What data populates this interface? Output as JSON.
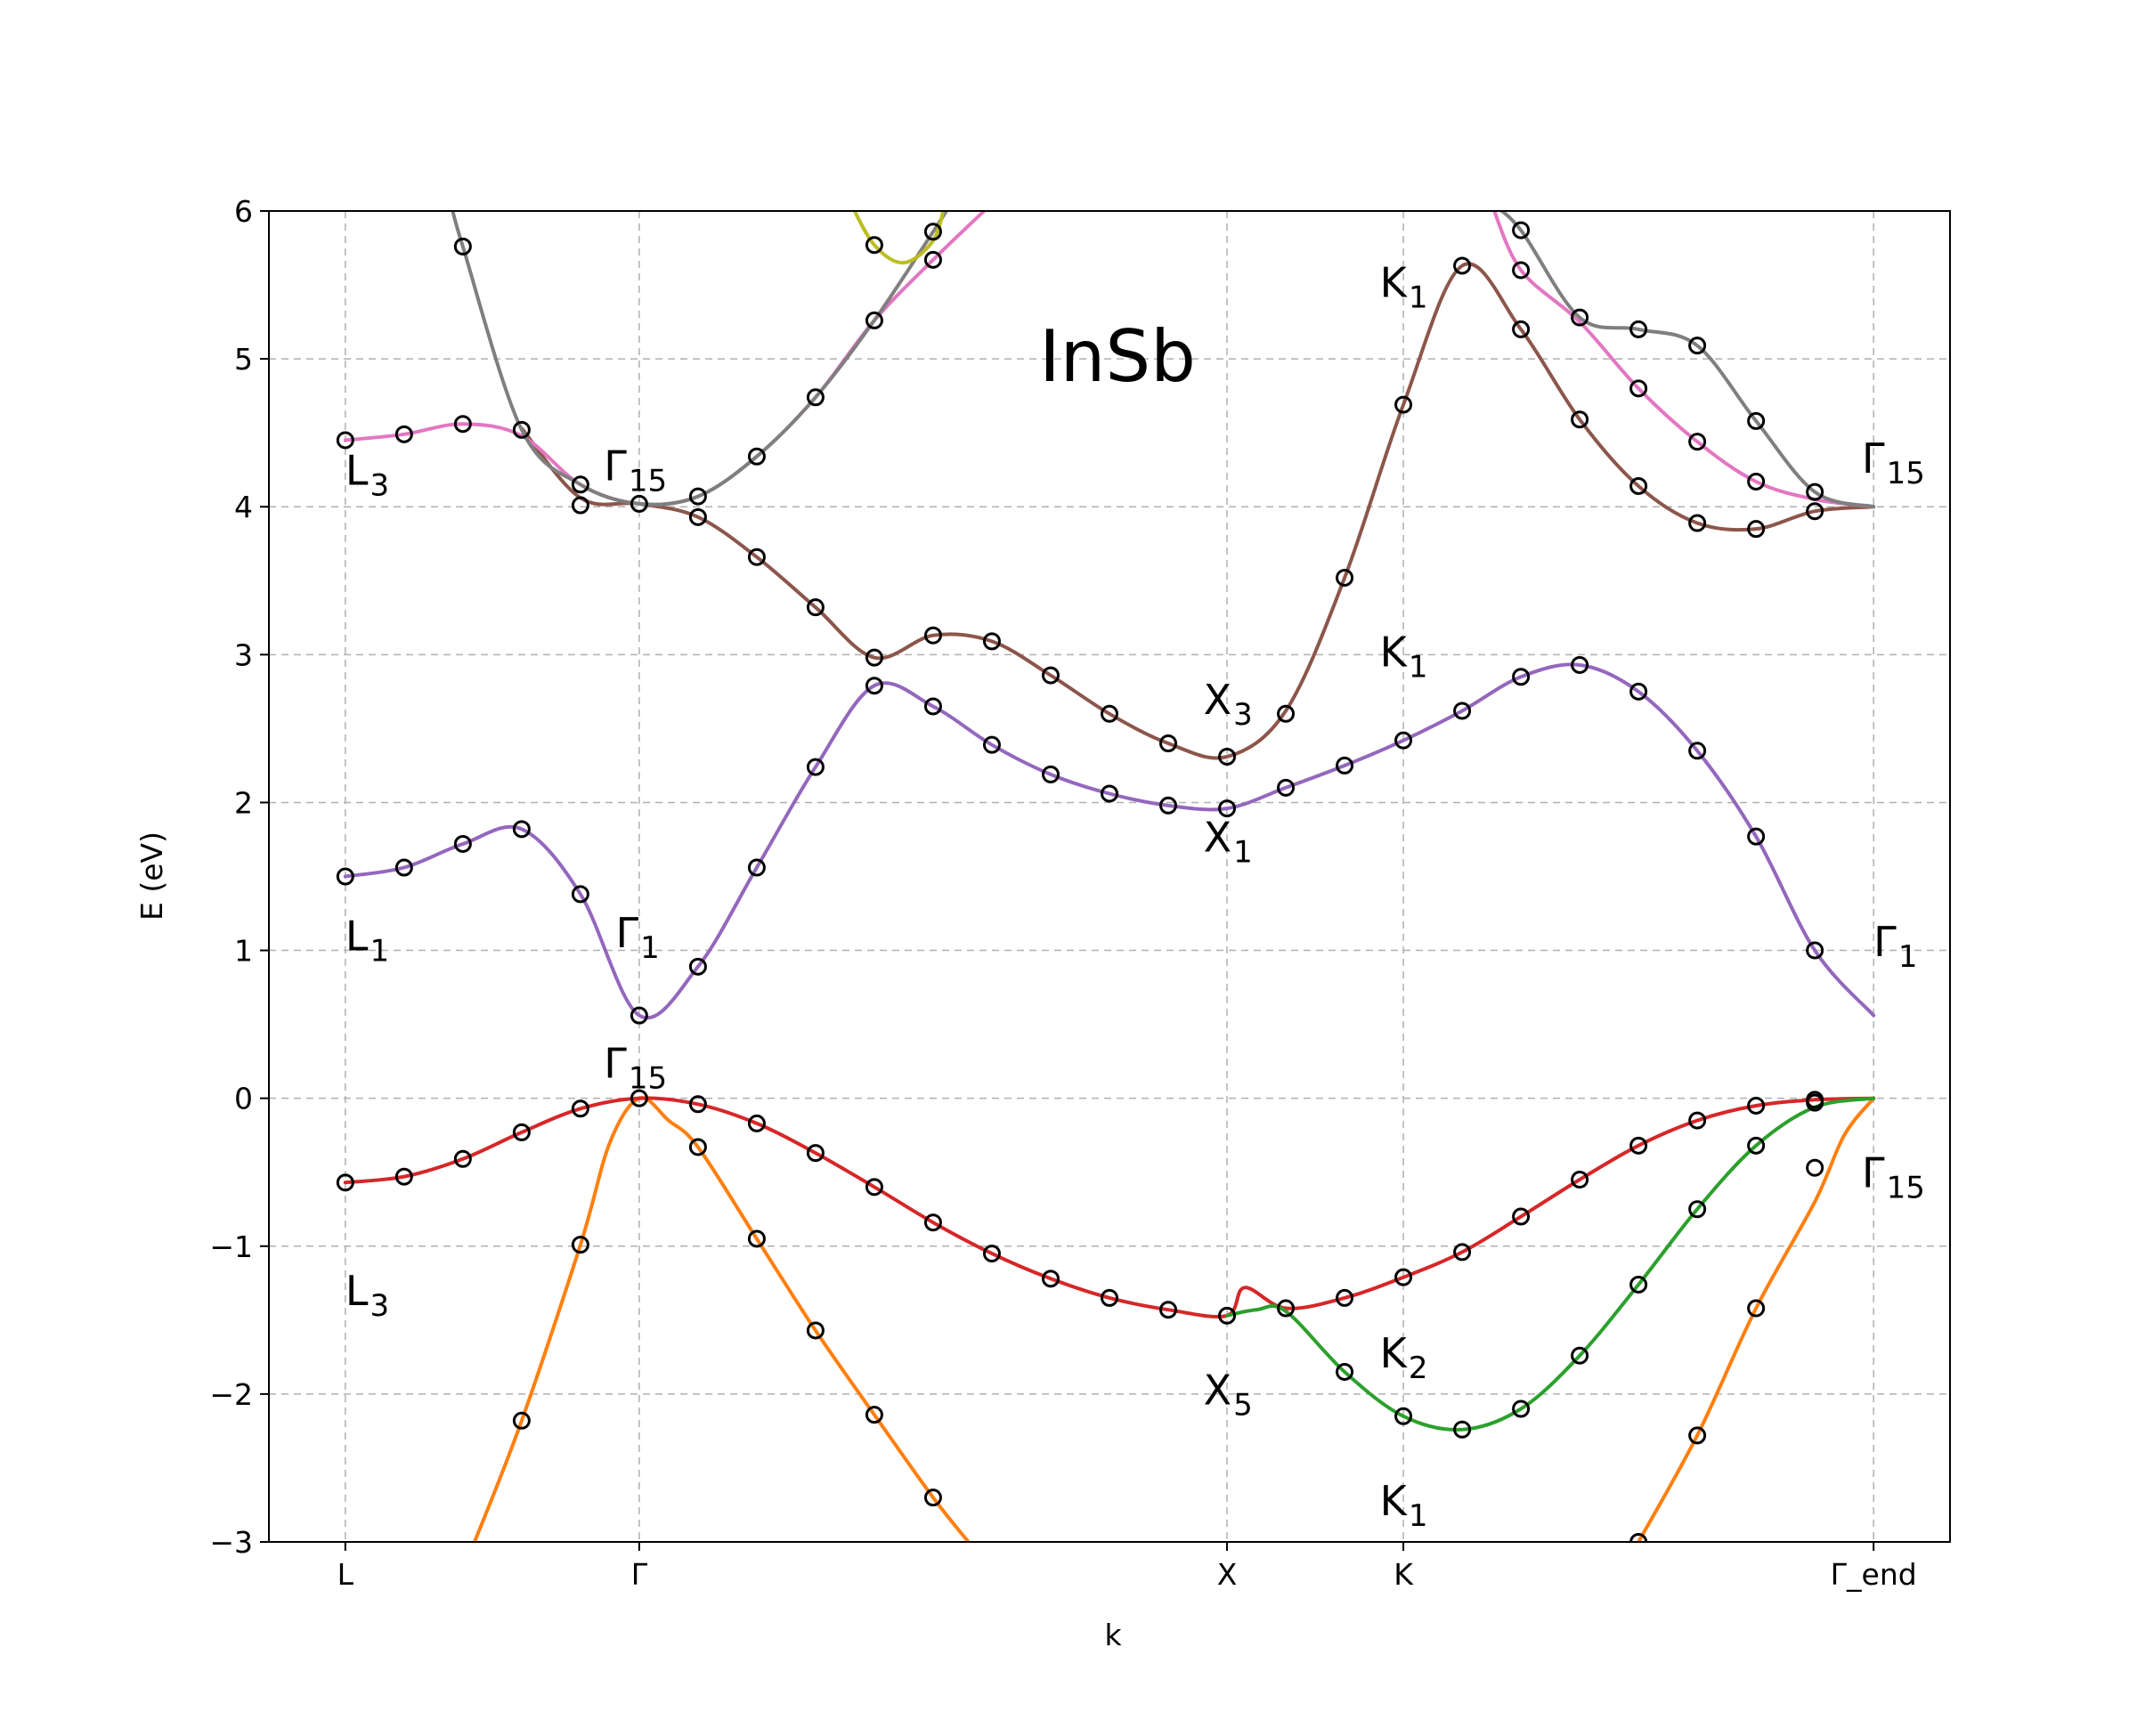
{
  "chart_data": {
    "type": "line",
    "title": "InSb",
    "xlabel": "k",
    "ylabel": "E (eV)",
    "ylim": [
      -3,
      6
    ],
    "yticks": [
      -3,
      -2,
      -1,
      0,
      1,
      2,
      3,
      4,
      5,
      6
    ],
    "ytick_labels": [
      "−3",
      "−2",
      "−1",
      "0",
      "1",
      "2",
      "3",
      "4",
      "5",
      "6"
    ],
    "xlim": [
      -0.13,
      2.73
    ],
    "kpoints": [
      {
        "label": "L",
        "x": 0
      },
      {
        "label": "Γ",
        "x": 0.5
      },
      {
        "label": "X",
        "x": 1.5
      },
      {
        "label": "K",
        "x": 1.8
      },
      {
        "label": "Γ_end",
        "x": 2.6
      }
    ],
    "grid": true,
    "annotations": [
      {
        "base": "L",
        "sub": "3",
        "x": 0.0,
        "y": 4.15
      },
      {
        "base": "Γ",
        "sub": "15",
        "x": 0.44,
        "y": 4.18
      },
      {
        "base": "L",
        "sub": "1",
        "x": 0.0,
        "y": 1.0
      },
      {
        "base": "Γ",
        "sub": "1",
        "x": 0.46,
        "y": 1.02
      },
      {
        "base": "Γ",
        "sub": "15",
        "x": 0.44,
        "y": 0.14
      },
      {
        "base": "L",
        "sub": "3",
        "x": 0.0,
        "y": -1.4
      },
      {
        "base": "X",
        "sub": "3",
        "x": 1.46,
        "y": 2.6
      },
      {
        "base": "X",
        "sub": "1",
        "x": 1.46,
        "y": 1.67
      },
      {
        "base": "X",
        "sub": "5",
        "x": 1.46,
        "y": -2.07
      },
      {
        "base": "K",
        "sub": "1",
        "x": 1.76,
        "y": 5.42
      },
      {
        "base": "K",
        "sub": "1",
        "x": 1.76,
        "y": 2.92
      },
      {
        "base": "K",
        "sub": "2",
        "x": 1.76,
        "y": -1.82
      },
      {
        "base": "K",
        "sub": "1",
        "x": 1.76,
        "y": -2.82
      },
      {
        "base": "Γ",
        "sub": "15",
        "x": 2.58,
        "y": 4.23
      },
      {
        "base": "Γ",
        "sub": "1",
        "x": 2.6,
        "y": 0.96
      },
      {
        "base": "Γ",
        "sub": "15",
        "x": 2.58,
        "y": -0.6
      }
    ],
    "series": [
      {
        "color": "#ff7f0e",
        "points": [
          [
            0.22,
            -3.0
          ],
          [
            0.3,
            -2.18
          ],
          [
            0.4,
            -0.99
          ],
          [
            0.45,
            -0.3
          ],
          [
            0.5,
            0.0
          ],
          [
            0.55,
            -0.15
          ],
          [
            0.6,
            -0.33
          ],
          [
            0.7,
            -0.95
          ],
          [
            0.8,
            -1.57
          ],
          [
            0.9,
            -2.14
          ],
          [
            1.0,
            -2.7
          ],
          [
            1.06,
            -3.0
          ]
        ]
      },
      {
        "color": "#ff7f0e",
        "points": [
          [
            2.2,
            -3.0
          ],
          [
            2.3,
            -2.28
          ],
          [
            2.4,
            -1.42
          ],
          [
            2.5,
            -0.7
          ],
          [
            2.55,
            -0.25
          ],
          [
            2.6,
            0.0
          ]
        ]
      },
      {
        "color": "#d62728",
        "points": [
          [
            0.0,
            -0.57
          ],
          [
            0.1,
            -0.53
          ],
          [
            0.2,
            -0.41
          ],
          [
            0.3,
            -0.23
          ],
          [
            0.4,
            -0.07
          ],
          [
            0.5,
            0.0
          ],
          [
            0.6,
            -0.04
          ],
          [
            0.7,
            -0.17
          ],
          [
            0.8,
            -0.37
          ],
          [
            0.9,
            -0.6
          ],
          [
            1.0,
            -0.84
          ],
          [
            1.1,
            -1.05
          ],
          [
            1.2,
            -1.22
          ],
          [
            1.3,
            -1.35
          ],
          [
            1.4,
            -1.43
          ],
          [
            1.5,
            -1.47
          ],
          [
            1.53,
            -1.28
          ],
          [
            1.6,
            -1.42
          ],
          [
            1.7,
            -1.35
          ],
          [
            1.8,
            -1.21
          ],
          [
            1.9,
            -1.04
          ],
          [
            2.0,
            -0.8
          ],
          [
            2.1,
            -0.55
          ],
          [
            2.2,
            -0.32
          ],
          [
            2.3,
            -0.15
          ],
          [
            2.4,
            -0.05
          ],
          [
            2.5,
            -0.01
          ],
          [
            2.6,
            0.0
          ]
        ]
      },
      {
        "color": "#2ca02c",
        "points": [
          [
            1.5,
            -1.47
          ],
          [
            1.55,
            -1.43
          ],
          [
            1.6,
            -1.44
          ],
          [
            1.7,
            -1.85
          ],
          [
            1.8,
            -2.15
          ],
          [
            1.9,
            -2.24
          ],
          [
            2.0,
            -2.1
          ],
          [
            2.1,
            -1.74
          ],
          [
            2.2,
            -1.26
          ],
          [
            2.3,
            -0.75
          ],
          [
            2.4,
            -0.32
          ],
          [
            2.5,
            -0.06
          ],
          [
            2.6,
            0.0
          ]
        ]
      },
      {
        "color": "#9467bd",
        "points": [
          [
            0.0,
            1.5
          ],
          [
            0.1,
            1.56
          ],
          [
            0.2,
            1.72
          ],
          [
            0.3,
            1.82
          ],
          [
            0.4,
            1.38
          ],
          [
            0.5,
            0.56
          ],
          [
            0.6,
            0.89
          ],
          [
            0.7,
            1.56
          ],
          [
            0.8,
            2.24
          ],
          [
            0.9,
            2.79
          ],
          [
            1.0,
            2.65
          ],
          [
            1.1,
            2.39
          ],
          [
            1.2,
            2.19
          ],
          [
            1.3,
            2.06
          ],
          [
            1.4,
            1.98
          ],
          [
            1.5,
            1.96
          ],
          [
            1.6,
            2.1
          ],
          [
            1.7,
            2.25
          ],
          [
            1.8,
            2.42
          ],
          [
            1.9,
            2.62
          ],
          [
            2.0,
            2.85
          ],
          [
            2.1,
            2.93
          ],
          [
            2.2,
            2.75
          ],
          [
            2.3,
            2.35
          ],
          [
            2.4,
            1.77
          ],
          [
            2.5,
            1.0
          ],
          [
            2.6,
            0.56
          ]
        ]
      },
      {
        "color": "#8c564b",
        "points": [
          [
            0.3,
            4.53
          ],
          [
            0.4,
            4.06
          ],
          [
            0.5,
            4.02
          ],
          [
            0.6,
            3.93
          ],
          [
            0.7,
            3.66
          ],
          [
            0.8,
            3.32
          ],
          [
            0.9,
            2.98
          ],
          [
            1.0,
            3.13
          ],
          [
            1.1,
            3.09
          ],
          [
            1.2,
            2.86
          ],
          [
            1.3,
            2.6
          ],
          [
            1.4,
            2.4
          ],
          [
            1.5,
            2.31
          ],
          [
            1.6,
            2.62
          ],
          [
            1.7,
            3.52
          ],
          [
            1.8,
            4.69
          ],
          [
            1.9,
            5.63
          ],
          [
            2.0,
            5.2
          ],
          [
            2.1,
            4.59
          ],
          [
            2.2,
            4.14
          ],
          [
            2.3,
            3.89
          ],
          [
            2.4,
            3.85
          ],
          [
            2.5,
            3.97
          ],
          [
            2.6,
            4.0
          ]
        ]
      },
      {
        "color": "#e377c2",
        "points": [
          [
            0.0,
            4.45
          ],
          [
            0.1,
            4.49
          ],
          [
            0.2,
            4.56
          ],
          [
            0.3,
            4.48
          ],
          [
            0.4,
            4.15
          ],
          [
            0.5,
            4.02
          ],
          [
            0.6,
            4.07
          ],
          [
            0.7,
            4.34
          ],
          [
            0.8,
            4.74
          ],
          [
            0.9,
            5.26
          ],
          [
            1.0,
            5.67
          ],
          [
            1.1,
            6.05
          ]
        ]
      },
      {
        "color": "#e377c2",
        "points": [
          [
            1.95,
            6.05
          ],
          [
            2.0,
            5.6
          ],
          [
            2.1,
            5.25
          ],
          [
            2.2,
            4.8
          ],
          [
            2.3,
            4.44
          ],
          [
            2.4,
            4.17
          ],
          [
            2.5,
            4.05
          ],
          [
            2.6,
            4.0
          ]
        ]
      },
      {
        "color": "#7f7f7f",
        "points": [
          [
            0.18,
            6.05
          ],
          [
            0.2,
            5.76
          ],
          [
            0.3,
            4.52
          ],
          [
            0.4,
            4.15
          ],
          [
            0.5,
            4.02
          ],
          [
            0.6,
            4.07
          ],
          [
            0.7,
            4.34
          ],
          [
            0.8,
            4.74
          ],
          [
            0.9,
            5.26
          ],
          [
            1.0,
            5.86
          ],
          [
            1.03,
            6.05
          ]
        ]
      },
      {
        "color": "#7f7f7f",
        "points": [
          [
            1.95,
            6.05
          ],
          [
            2.0,
            5.87
          ],
          [
            2.1,
            5.28
          ],
          [
            2.2,
            5.2
          ],
          [
            2.3,
            5.09
          ],
          [
            2.4,
            4.58
          ],
          [
            2.5,
            4.1
          ],
          [
            2.6,
            4.0
          ]
        ]
      },
      {
        "color": "#bcbd22",
        "points": [
          [
            0.86,
            6.05
          ],
          [
            0.9,
            5.77
          ],
          [
            0.95,
            5.65
          ],
          [
            1.0,
            5.8
          ],
          [
            1.02,
            6.05
          ]
        ]
      }
    ],
    "markers": [
      [
        0.0,
        -0.57
      ],
      [
        0.1,
        -0.53
      ],
      [
        0.2,
        -0.41
      ],
      [
        0.3,
        -0.23
      ],
      [
        0.4,
        -0.07
      ],
      [
        0.5,
        0.0
      ],
      [
        0.6,
        -0.04
      ],
      [
        0.7,
        -0.17
      ],
      [
        0.8,
        -0.37
      ],
      [
        0.9,
        -0.6
      ],
      [
        1.0,
        -0.84
      ],
      [
        1.1,
        -1.05
      ],
      [
        1.2,
        -1.22
      ],
      [
        1.3,
        -1.35
      ],
      [
        1.4,
        -1.43
      ],
      [
        1.5,
        -1.47
      ],
      [
        1.6,
        -1.42
      ],
      [
        1.7,
        -1.35
      ],
      [
        1.8,
        -1.21
      ],
      [
        1.9,
        -1.04
      ],
      [
        2.0,
        -0.8
      ],
      [
        2.1,
        -0.55
      ],
      [
        2.2,
        -0.32
      ],
      [
        2.3,
        -0.15
      ],
      [
        2.4,
        -0.05
      ],
      [
        2.5,
        -0.01
      ],
      [
        0.3,
        -2.18
      ],
      [
        0.4,
        -0.99
      ],
      [
        0.6,
        -0.33
      ],
      [
        0.7,
        -0.95
      ],
      [
        0.8,
        -1.57
      ],
      [
        0.9,
        -2.14
      ],
      [
        1.0,
        -2.7
      ],
      [
        2.2,
        -3.0
      ],
      [
        2.3,
        -2.28
      ],
      [
        2.4,
        -1.42
      ],
      [
        2.5,
        -0.47
      ],
      [
        1.7,
        -1.85
      ],
      [
        1.8,
        -2.15
      ],
      [
        1.9,
        -2.24
      ],
      [
        2.0,
        -2.1
      ],
      [
        2.1,
        -1.74
      ],
      [
        2.2,
        -1.26
      ],
      [
        2.3,
        -0.75
      ],
      [
        2.4,
        -0.32
      ],
      [
        2.5,
        -0.03
      ],
      [
        0.0,
        1.5
      ],
      [
        0.1,
        1.56
      ],
      [
        0.2,
        1.72
      ],
      [
        0.3,
        1.82
      ],
      [
        0.4,
        1.38
      ],
      [
        0.5,
        0.56
      ],
      [
        0.6,
        0.89
      ],
      [
        0.7,
        1.56
      ],
      [
        0.8,
        2.24
      ],
      [
        0.9,
        2.79
      ],
      [
        1.0,
        2.65
      ],
      [
        1.1,
        2.39
      ],
      [
        1.2,
        2.19
      ],
      [
        1.3,
        2.06
      ],
      [
        1.4,
        1.98
      ],
      [
        1.5,
        1.96
      ],
      [
        1.6,
        2.1
      ],
      [
        1.7,
        2.25
      ],
      [
        1.8,
        2.42
      ],
      [
        1.9,
        2.62
      ],
      [
        2.0,
        2.85
      ],
      [
        2.1,
        2.93
      ],
      [
        2.2,
        2.75
      ],
      [
        2.3,
        2.35
      ],
      [
        2.4,
        1.77
      ],
      [
        2.5,
        1.0
      ],
      [
        0.4,
        4.01
      ],
      [
        0.5,
        4.02
      ],
      [
        0.6,
        3.93
      ],
      [
        0.7,
        3.66
      ],
      [
        0.8,
        3.32
      ],
      [
        0.9,
        2.98
      ],
      [
        1.0,
        3.13
      ],
      [
        1.1,
        3.09
      ],
      [
        1.2,
        2.86
      ],
      [
        1.3,
        2.6
      ],
      [
        1.4,
        2.4
      ],
      [
        1.5,
        2.31
      ],
      [
        1.6,
        2.6
      ],
      [
        1.7,
        3.52
      ],
      [
        1.8,
        4.69
      ],
      [
        1.9,
        5.63
      ],
      [
        2.0,
        5.2
      ],
      [
        2.1,
        4.59
      ],
      [
        2.2,
        4.14
      ],
      [
        2.3,
        3.89
      ],
      [
        2.4,
        3.85
      ],
      [
        2.5,
        3.97
      ],
      [
        0.0,
        4.45
      ],
      [
        0.1,
        4.49
      ],
      [
        0.2,
        4.56
      ],
      [
        0.3,
        4.52
      ],
      [
        0.4,
        4.15
      ],
      [
        0.6,
        4.07
      ],
      [
        0.7,
        4.34
      ],
      [
        0.8,
        4.74
      ],
      [
        0.9,
        5.26
      ],
      [
        1.0,
        5.67
      ],
      [
        0.2,
        5.76
      ],
      [
        1.0,
        5.86
      ],
      [
        0.9,
        5.77
      ],
      [
        2.0,
        5.87
      ],
      [
        2.0,
        5.6
      ],
      [
        2.1,
        5.28
      ],
      [
        2.2,
        4.8
      ],
      [
        2.2,
        5.2
      ],
      [
        2.3,
        4.44
      ],
      [
        2.3,
        5.09
      ],
      [
        2.4,
        4.17
      ],
      [
        2.4,
        4.58
      ],
      [
        2.5,
        4.1
      ]
    ]
  }
}
